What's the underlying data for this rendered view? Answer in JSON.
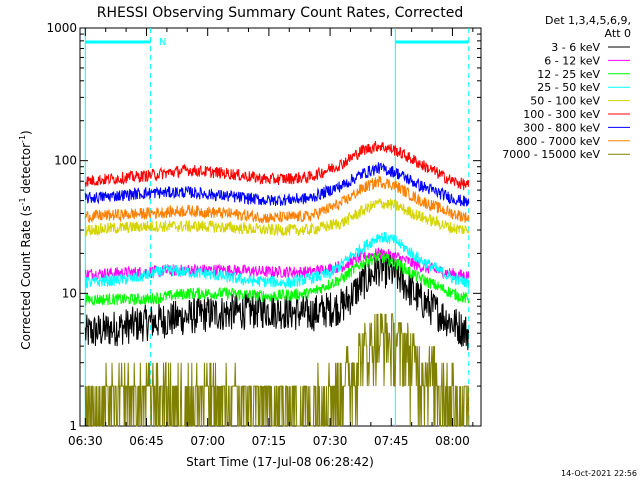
{
  "chart_data": {
    "type": "line",
    "title": "RHESSI Observing Summary Count Rates, Corrected",
    "xlabel": "Start Time (17-Jul-08 06:28:42)",
    "ylabel_prefix": "Corrected Count Rate (s",
    "ylabel_exp1": "-1",
    "ylabel_mid": " detector",
    "ylabel_exp2": "-1",
    "ylabel_suffix": ")",
    "y_scale": "log",
    "ylim": [
      1,
      1000
    ],
    "xlim": [
      "06:28:42",
      "08:07:00"
    ],
    "x_tick_labels": [
      "06:30",
      "06:45",
      "07:00",
      "07:15",
      "07:30",
      "07:45",
      "08:00"
    ],
    "y_tick_labels": [
      "1",
      "10",
      "100",
      "1000"
    ],
    "legend": {
      "placement": "right",
      "header_line1": "Det 1,3,4,5,6,9,",
      "header_line2": "Att 0"
    },
    "series": [
      {
        "name": "3 - 6 keV",
        "color": "#000000",
        "times": [
          "06:30",
          "06:45",
          "07:00",
          "07:15",
          "07:25",
          "07:33",
          "07:38",
          "07:42",
          "07:46",
          "07:52",
          "08:00",
          "08:04"
        ],
        "values": [
          5,
          6,
          7,
          7.5,
          7,
          8,
          12,
          15.5,
          14,
          9,
          6,
          5
        ]
      },
      {
        "name": "6 - 12 keV",
        "color": "#ff00ff",
        "times": [
          "06:30",
          "06:45",
          "06:55",
          "07:05",
          "07:15",
          "07:25",
          "07:33",
          "07:38",
          "07:42",
          "07:46",
          "07:52",
          "08:00",
          "08:04"
        ],
        "values": [
          14,
          14.5,
          15,
          15,
          14.5,
          14.5,
          16,
          19,
          20,
          19,
          16,
          14,
          13.5
        ]
      },
      {
        "name": "12 - 25 keV",
        "color": "#00ff00",
        "times": [
          "06:30",
          "06:45",
          "06:55",
          "07:05",
          "07:15",
          "07:25",
          "07:33",
          "07:38",
          "07:42",
          "07:46",
          "07:52",
          "08:00",
          "08:04"
        ],
        "values": [
          9,
          9,
          10,
          10,
          9.5,
          10,
          13,
          17,
          19,
          17,
          13,
          10,
          9
        ]
      },
      {
        "name": "25 - 50 keV",
        "color": "#00ffff",
        "times": [
          "06:30",
          "06:42",
          "06:50",
          "07:00",
          "07:10",
          "07:20",
          "07:30",
          "07:36",
          "07:42",
          "07:46",
          "07:52",
          "08:00",
          "08:04"
        ],
        "values": [
          12,
          13,
          15,
          14,
          12.5,
          12,
          14,
          20,
          27,
          25,
          18,
          13,
          12
        ]
      },
      {
        "name": "50 - 100 keV",
        "color": "#d4d400",
        "times": [
          "06:30",
          "06:45",
          "07:00",
          "07:15",
          "07:25",
          "07:33",
          "07:38",
          "07:42",
          "07:46",
          "07:52",
          "08:00",
          "08:04"
        ],
        "values": [
          30,
          32,
          32,
          30,
          30,
          34,
          42,
          48,
          46,
          38,
          31,
          30
        ]
      },
      {
        "name": "100 - 300 keV",
        "color": "#ff0000",
        "times": [
          "06:30",
          "06:45",
          "06:55",
          "07:05",
          "07:15",
          "07:25",
          "07:33",
          "07:38",
          "07:42",
          "07:46",
          "07:52",
          "08:00",
          "08:04"
        ],
        "values": [
          70,
          77,
          85,
          80,
          72,
          75,
          95,
          120,
          130,
          120,
          95,
          70,
          65
        ]
      },
      {
        "name": "300 - 800 keV",
        "color": "#0000ff",
        "times": [
          "06:30",
          "06:45",
          "06:55",
          "07:05",
          "07:15",
          "07:25",
          "07:33",
          "07:38",
          "07:42",
          "07:46",
          "07:52",
          "08:00",
          "08:04"
        ],
        "values": [
          52,
          57,
          58,
          54,
          50,
          52,
          65,
          80,
          88,
          82,
          65,
          52,
          48
        ]
      },
      {
        "name": "800 - 7000 keV",
        "color": "#ff8000",
        "times": [
          "06:30",
          "06:45",
          "06:55",
          "07:05",
          "07:15",
          "07:25",
          "07:33",
          "07:38",
          "07:42",
          "07:46",
          "07:52",
          "08:00",
          "08:04"
        ],
        "values": [
          38,
          40,
          42,
          40,
          37,
          38,
          48,
          62,
          70,
          65,
          50,
          40,
          37
        ]
      },
      {
        "name": "7000 - 15000 keV",
        "color": "#808000",
        "times": [
          "06:30",
          "06:45",
          "07:00",
          "07:15",
          "07:25",
          "07:33",
          "07:38",
          "07:42",
          "07:46",
          "07:52",
          "08:00",
          "08:04"
        ],
        "values": [
          1.5,
          1.8,
          1.7,
          1.5,
          1.5,
          2.2,
          3.5,
          5,
          4.5,
          3,
          1.8,
          1.5
        ]
      }
    ],
    "flags": [
      {
        "name": "N",
        "segments": [
          [
            "06:30",
            "06:46"
          ],
          [
            "07:46",
            "08:04"
          ]
        ]
      }
    ],
    "vertical_markers": [
      "06:30",
      "06:46",
      "07:46",
      "08:04"
    ],
    "timestamp": "14-Oct-2021 22:56"
  }
}
